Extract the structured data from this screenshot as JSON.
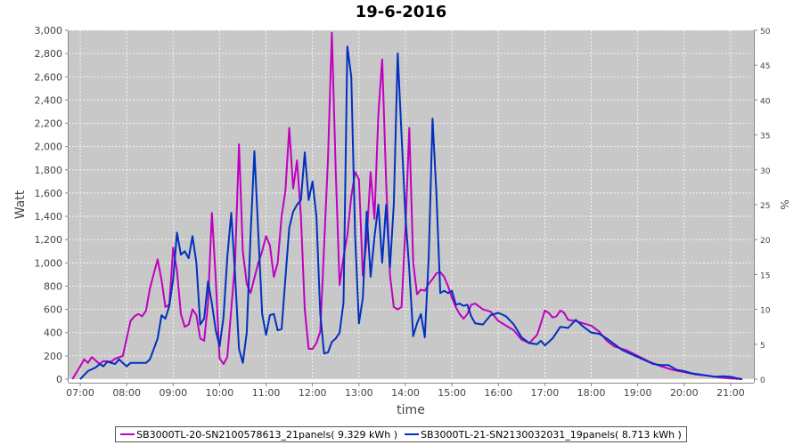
{
  "chart_data": {
    "type": "line",
    "title": "19-6-2016",
    "xlabel": "time",
    "ylabel": "Watt",
    "y2label": "%",
    "ylim": [
      0,
      3000
    ],
    "y2lim": [
      0,
      50
    ],
    "xlim": [
      "06:45",
      "21:30"
    ],
    "grid": true,
    "legend_position": "bottom",
    "x_ticks": [
      "07:00",
      "08:00",
      "09:00",
      "10:00",
      "11:00",
      "12:00",
      "13:00",
      "14:00",
      "15:00",
      "16:00",
      "17:00",
      "18:00",
      "19:00",
      "20:00",
      "21:00"
    ],
    "y_ticks": [
      "0",
      "200",
      "400",
      "600",
      "800",
      "1,000",
      "1,200",
      "1,400",
      "1,600",
      "1,800",
      "2,000",
      "2,200",
      "2,400",
      "2,600",
      "2,800",
      "3,000"
    ],
    "y2_ticks": [
      "0",
      "5",
      "10",
      "15",
      "20",
      "25",
      "30",
      "35",
      "40",
      "45",
      "50"
    ],
    "series": [
      {
        "name": "SB3000TL-20-SN2100578613_21panels( 9.329 kWh )",
        "color": "#c000c0",
        "points": [
          [
            "06:50",
            0
          ],
          [
            "07:00",
            110
          ],
          [
            "07:05",
            170
          ],
          [
            "07:10",
            140
          ],
          [
            "07:15",
            190
          ],
          [
            "07:20",
            160
          ],
          [
            "07:25",
            130
          ],
          [
            "07:30",
            155
          ],
          [
            "07:40",
            150
          ],
          [
            "07:45",
            175
          ],
          [
            "07:55",
            200
          ],
          [
            "08:05",
            500
          ],
          [
            "08:10",
            540
          ],
          [
            "08:15",
            560
          ],
          [
            "08:20",
            540
          ],
          [
            "08:25",
            590
          ],
          [
            "08:30",
            780
          ],
          [
            "08:40",
            1030
          ],
          [
            "08:45",
            850
          ],
          [
            "08:50",
            620
          ],
          [
            "08:55",
            640
          ],
          [
            "09:00",
            1130
          ],
          [
            "09:05",
            930
          ],
          [
            "09:10",
            560
          ],
          [
            "09:15",
            450
          ],
          [
            "09:20",
            470
          ],
          [
            "09:25",
            600
          ],
          [
            "09:30",
            550
          ],
          [
            "09:35",
            350
          ],
          [
            "09:40",
            330
          ],
          [
            "09:45",
            650
          ],
          [
            "09:50",
            1430
          ],
          [
            "09:55",
            860
          ],
          [
            "10:00",
            180
          ],
          [
            "10:05",
            130
          ],
          [
            "10:10",
            190
          ],
          [
            "10:15",
            600
          ],
          [
            "10:20",
            1000
          ],
          [
            "10:25",
            2020
          ],
          [
            "10:30",
            1100
          ],
          [
            "10:35",
            820
          ],
          [
            "10:40",
            740
          ],
          [
            "10:45",
            870
          ],
          [
            "10:50",
            1000
          ],
          [
            "10:55",
            1100
          ],
          [
            "11:00",
            1230
          ],
          [
            "11:05",
            1150
          ],
          [
            "11:10",
            880
          ],
          [
            "11:15",
            1000
          ],
          [
            "11:20",
            1400
          ],
          [
            "11:25",
            1620
          ],
          [
            "11:30",
            2160
          ],
          [
            "11:35",
            1640
          ],
          [
            "11:40",
            1880
          ],
          [
            "11:45",
            1400
          ],
          [
            "11:50",
            600
          ],
          [
            "11:55",
            260
          ],
          [
            "12:00",
            260
          ],
          [
            "12:05",
            310
          ],
          [
            "12:10",
            410
          ],
          [
            "12:15",
            1140
          ],
          [
            "12:20",
            1900
          ],
          [
            "12:25",
            2980
          ],
          [
            "12:30",
            1780
          ],
          [
            "12:35",
            810
          ],
          [
            "12:40",
            1050
          ],
          [
            "12:45",
            1240
          ],
          [
            "12:50",
            1570
          ],
          [
            "12:55",
            1780
          ],
          [
            "13:00",
            1720
          ],
          [
            "13:05",
            890
          ],
          [
            "13:10",
            1200
          ],
          [
            "13:15",
            1780
          ],
          [
            "13:20",
            1380
          ],
          [
            "13:25",
            2280
          ],
          [
            "13:30",
            2750
          ],
          [
            "13:35",
            1700
          ],
          [
            "13:40",
            900
          ],
          [
            "13:45",
            620
          ],
          [
            "13:50",
            600
          ],
          [
            "13:55",
            620
          ],
          [
            "14:00",
            1300
          ],
          [
            "14:05",
            2160
          ],
          [
            "14:10",
            1000
          ],
          [
            "14:15",
            730
          ],
          [
            "14:20",
            770
          ],
          [
            "14:25",
            760
          ],
          [
            "14:30",
            820
          ],
          [
            "14:35",
            860
          ],
          [
            "14:40",
            910
          ],
          [
            "14:45",
            920
          ],
          [
            "14:50",
            880
          ],
          [
            "14:55",
            800
          ],
          [
            "15:00",
            700
          ],
          [
            "15:05",
            620
          ],
          [
            "15:10",
            560
          ],
          [
            "15:15",
            520
          ],
          [
            "15:20",
            560
          ],
          [
            "15:25",
            640
          ],
          [
            "15:30",
            650
          ],
          [
            "15:40",
            600
          ],
          [
            "15:50",
            580
          ],
          [
            "16:00",
            500
          ],
          [
            "16:10",
            460
          ],
          [
            "16:20",
            420
          ],
          [
            "16:30",
            340
          ],
          [
            "16:40",
            310
          ],
          [
            "16:50",
            380
          ],
          [
            "16:55",
            480
          ],
          [
            "17:00",
            590
          ],
          [
            "17:05",
            570
          ],
          [
            "17:10",
            530
          ],
          [
            "17:15",
            540
          ],
          [
            "17:20",
            590
          ],
          [
            "17:25",
            570
          ],
          [
            "17:30",
            510
          ],
          [
            "17:40",
            500
          ],
          [
            "17:50",
            480
          ],
          [
            "18:00",
            460
          ],
          [
            "18:10",
            410
          ],
          [
            "18:20",
            330
          ],
          [
            "18:30",
            280
          ],
          [
            "18:45",
            250
          ],
          [
            "19:00",
            200
          ],
          [
            "19:15",
            150
          ],
          [
            "19:30",
            110
          ],
          [
            "19:45",
            80
          ],
          [
            "20:00",
            60
          ],
          [
            "20:15",
            40
          ],
          [
            "20:30",
            30
          ],
          [
            "20:45",
            15
          ],
          [
            "21:00",
            5
          ],
          [
            "21:15",
            0
          ]
        ]
      },
      {
        "name": "SB3000TL-21-SN2130032031_19panels( 8.713 kWh )",
        "color": "#0030c0",
        "points": [
          [
            "07:00",
            0
          ],
          [
            "07:10",
            70
          ],
          [
            "07:20",
            100
          ],
          [
            "07:25",
            130
          ],
          [
            "07:30",
            110
          ],
          [
            "07:35",
            150
          ],
          [
            "07:45",
            130
          ],
          [
            "07:50",
            170
          ],
          [
            "07:55",
            140
          ],
          [
            "08:00",
            110
          ],
          [
            "08:05",
            140
          ],
          [
            "08:15",
            140
          ],
          [
            "08:25",
            140
          ],
          [
            "08:30",
            170
          ],
          [
            "08:35",
            260
          ],
          [
            "08:40",
            350
          ],
          [
            "08:45",
            550
          ],
          [
            "08:50",
            520
          ],
          [
            "08:55",
            630
          ],
          [
            "09:00",
            860
          ],
          [
            "09:05",
            1260
          ],
          [
            "09:10",
            1070
          ],
          [
            "09:15",
            1100
          ],
          [
            "09:20",
            1040
          ],
          [
            "09:25",
            1230
          ],
          [
            "09:30",
            1000
          ],
          [
            "09:35",
            470
          ],
          [
            "09:40",
            520
          ],
          [
            "09:45",
            840
          ],
          [
            "09:50",
            650
          ],
          [
            "09:55",
            420
          ],
          [
            "10:00",
            280
          ],
          [
            "10:05",
            530
          ],
          [
            "10:10",
            1050
          ],
          [
            "10:15",
            1430
          ],
          [
            "10:20",
            900
          ],
          [
            "10:25",
            260
          ],
          [
            "10:30",
            140
          ],
          [
            "10:35",
            400
          ],
          [
            "10:40",
            1240
          ],
          [
            "10:45",
            1960
          ],
          [
            "10:50",
            1250
          ],
          [
            "10:55",
            560
          ],
          [
            "11:00",
            380
          ],
          [
            "11:05",
            550
          ],
          [
            "11:10",
            560
          ],
          [
            "11:15",
            420
          ],
          [
            "11:20",
            430
          ],
          [
            "11:25",
            870
          ],
          [
            "11:30",
            1300
          ],
          [
            "11:35",
            1440
          ],
          [
            "11:40",
            1500
          ],
          [
            "11:45",
            1540
          ],
          [
            "11:50",
            1950
          ],
          [
            "11:55",
            1540
          ],
          [
            "12:00",
            1700
          ],
          [
            "12:05",
            1400
          ],
          [
            "12:10",
            560
          ],
          [
            "12:15",
            220
          ],
          [
            "12:20",
            230
          ],
          [
            "12:25",
            320
          ],
          [
            "12:30",
            350
          ],
          [
            "12:35",
            400
          ],
          [
            "12:40",
            660
          ],
          [
            "12:45",
            2860
          ],
          [
            "12:50",
            2600
          ],
          [
            "12:55",
            1240
          ],
          [
            "13:00",
            480
          ],
          [
            "13:05",
            700
          ],
          [
            "13:10",
            1440
          ],
          [
            "13:15",
            880
          ],
          [
            "13:20",
            1220
          ],
          [
            "13:25",
            1500
          ],
          [
            "13:30",
            1000
          ],
          [
            "13:35",
            1500
          ],
          [
            "13:40",
            960
          ],
          [
            "13:45",
            1500
          ],
          [
            "13:50",
            2800
          ],
          [
            "13:55",
            2100
          ],
          [
            "14:00",
            1400
          ],
          [
            "14:05",
            940
          ],
          [
            "14:10",
            370
          ],
          [
            "14:15",
            480
          ],
          [
            "14:20",
            560
          ],
          [
            "14:25",
            360
          ],
          [
            "14:30",
            1050
          ],
          [
            "14:35",
            2240
          ],
          [
            "14:40",
            1600
          ],
          [
            "14:45",
            740
          ],
          [
            "14:50",
            760
          ],
          [
            "14:55",
            740
          ],
          [
            "15:00",
            760
          ],
          [
            "15:05",
            640
          ],
          [
            "15:10",
            650
          ],
          [
            "15:15",
            630
          ],
          [
            "15:20",
            640
          ],
          [
            "15:25",
            540
          ],
          [
            "15:30",
            480
          ],
          [
            "15:40",
            470
          ],
          [
            "15:50",
            550
          ],
          [
            "16:00",
            570
          ],
          [
            "16:10",
            540
          ],
          [
            "16:20",
            470
          ],
          [
            "16:30",
            360
          ],
          [
            "16:40",
            310
          ],
          [
            "16:50",
            300
          ],
          [
            "16:55",
            330
          ],
          [
            "17:00",
            290
          ],
          [
            "17:10",
            350
          ],
          [
            "17:20",
            450
          ],
          [
            "17:30",
            440
          ],
          [
            "17:40",
            510
          ],
          [
            "17:50",
            450
          ],
          [
            "18:00",
            400
          ],
          [
            "18:10",
            390
          ],
          [
            "18:20",
            350
          ],
          [
            "18:30",
            300
          ],
          [
            "18:40",
            250
          ],
          [
            "18:50",
            220
          ],
          [
            "19:00",
            190
          ],
          [
            "19:10",
            160
          ],
          [
            "19:20",
            130
          ],
          [
            "19:30",
            120
          ],
          [
            "19:40",
            120
          ],
          [
            "19:50",
            80
          ],
          [
            "20:00",
            70
          ],
          [
            "20:10",
            50
          ],
          [
            "20:20",
            40
          ],
          [
            "20:30",
            30
          ],
          [
            "20:40",
            20
          ],
          [
            "20:50",
            25
          ],
          [
            "21:00",
            20
          ],
          [
            "21:10",
            5
          ],
          [
            "21:15",
            0
          ]
        ]
      }
    ]
  }
}
